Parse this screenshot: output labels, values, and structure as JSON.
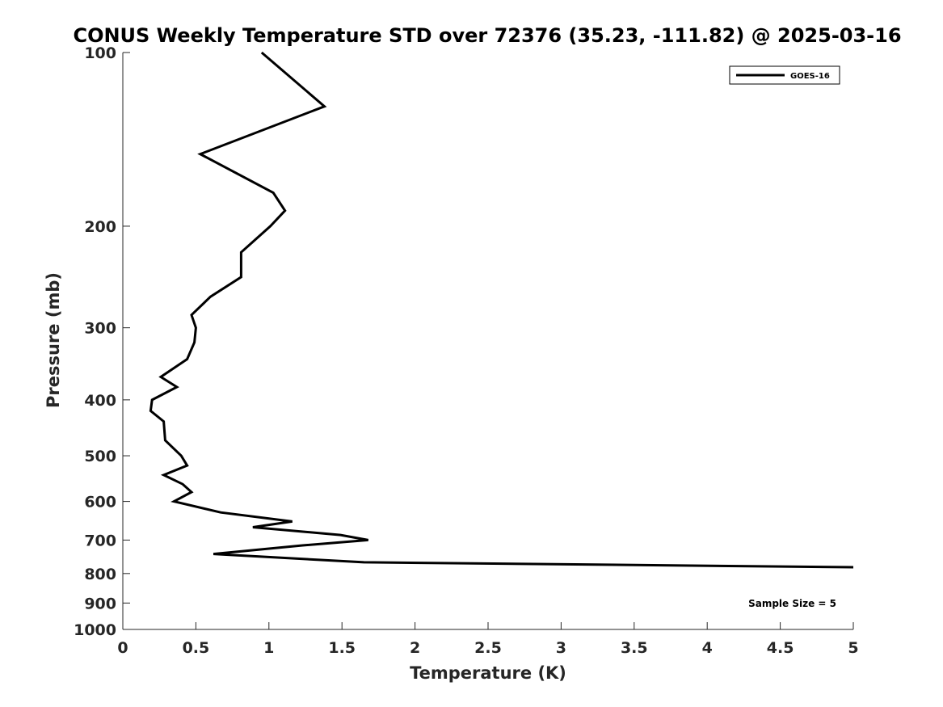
{
  "chart_data": {
    "type": "line",
    "title": "CONUS Weekly Temperature STD over 72376 (35.23, -111.82) @ 2025-03-16",
    "xlabel": "Temperature (K)",
    "ylabel": "Pressure (mb)",
    "xlim": [
      0,
      5
    ],
    "ylim": [
      100,
      1000
    ],
    "y_scale": "log",
    "y_reversed": true,
    "xticks": [
      0,
      0.5,
      1,
      1.5,
      2,
      2.5,
      3,
      3.5,
      4,
      4.5,
      5
    ],
    "xtick_labels": [
      "0",
      "0.5",
      "1",
      "1.5",
      "2",
      "2.5",
      "3",
      "3.5",
      "4",
      "4.5",
      "5"
    ],
    "yticks": [
      100,
      200,
      300,
      400,
      500,
      600,
      700,
      800,
      900,
      1000
    ],
    "ytick_labels": [
      "100",
      "200",
      "300",
      "400",
      "500",
      "600",
      "700",
      "800",
      "900",
      "1000"
    ],
    "grid": false,
    "legend_position": "top-right",
    "series": [
      {
        "name": "GOES-16",
        "color": "#000000",
        "x": [
          0.95,
          1.38,
          0.53,
          1.03,
          1.11,
          1.01,
          0.81,
          0.81,
          0.6,
          0.47,
          0.5,
          0.49,
          0.44,
          0.26,
          0.37,
          0.2,
          0.19,
          0.28,
          0.29,
          0.4,
          0.44,
          0.28,
          0.41,
          0.47,
          0.35,
          0.67,
          1.16,
          0.89,
          1.49,
          1.68,
          1.23,
          0.62,
          1.65,
          5.0
        ],
        "y": [
          100,
          124,
          150,
          175,
          188,
          200,
          222,
          245,
          265,
          285,
          300,
          318,
          340,
          365,
          380,
          400,
          418,
          436,
          470,
          500,
          520,
          540,
          560,
          578,
          600,
          627,
          650,
          665,
          686,
          700,
          715,
          740,
          765,
          780
        ]
      }
    ],
    "annotations": [
      "Sample Size = 5"
    ]
  }
}
